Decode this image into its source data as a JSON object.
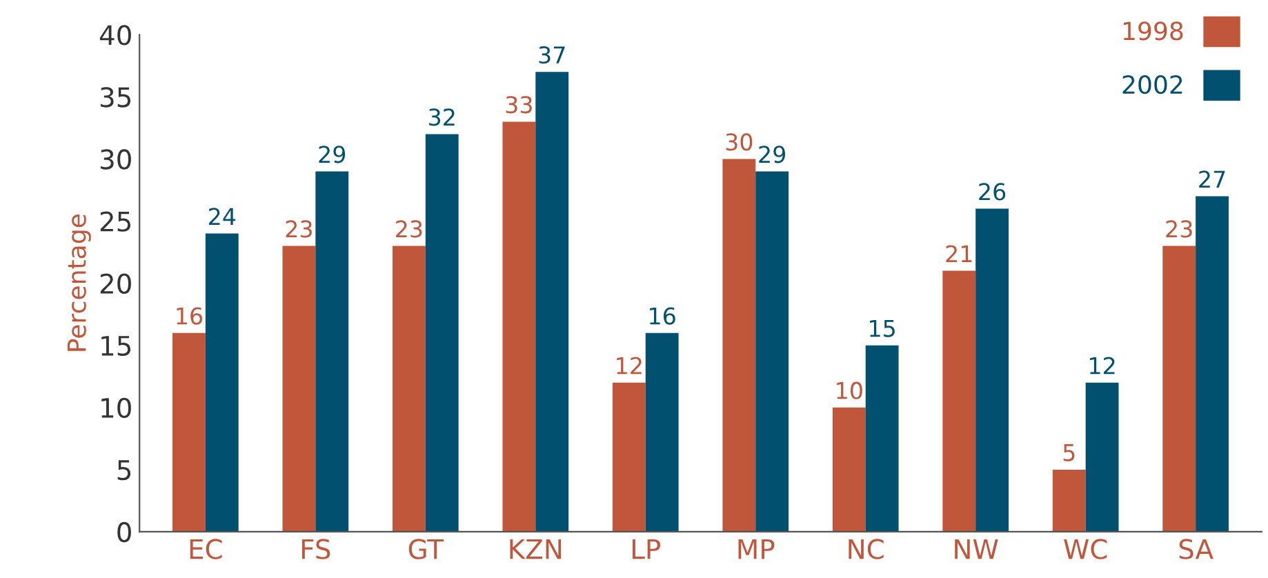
{
  "chart_data": {
    "type": "bar",
    "ylabel": "Percentage",
    "categories": [
      "EC",
      "FS",
      "GT",
      "KZN",
      "LP",
      "MP",
      "NC",
      "NW",
      "WC",
      "SA"
    ],
    "series": [
      {
        "name": "1998",
        "color": "#c0563a",
        "values": [
          16,
          23,
          23,
          33,
          12,
          30,
          10,
          21,
          5,
          23
        ]
      },
      {
        "name": "2002",
        "color": "#02506f",
        "values": [
          24,
          29,
          32,
          37,
          16,
          29,
          15,
          26,
          12,
          27
        ]
      }
    ],
    "ylim": [
      0,
      40
    ],
    "yticks": [
      0,
      5,
      10,
      15,
      20,
      25,
      30,
      35,
      40
    ],
    "data_labels": true,
    "grid": false,
    "legend": "top right"
  }
}
